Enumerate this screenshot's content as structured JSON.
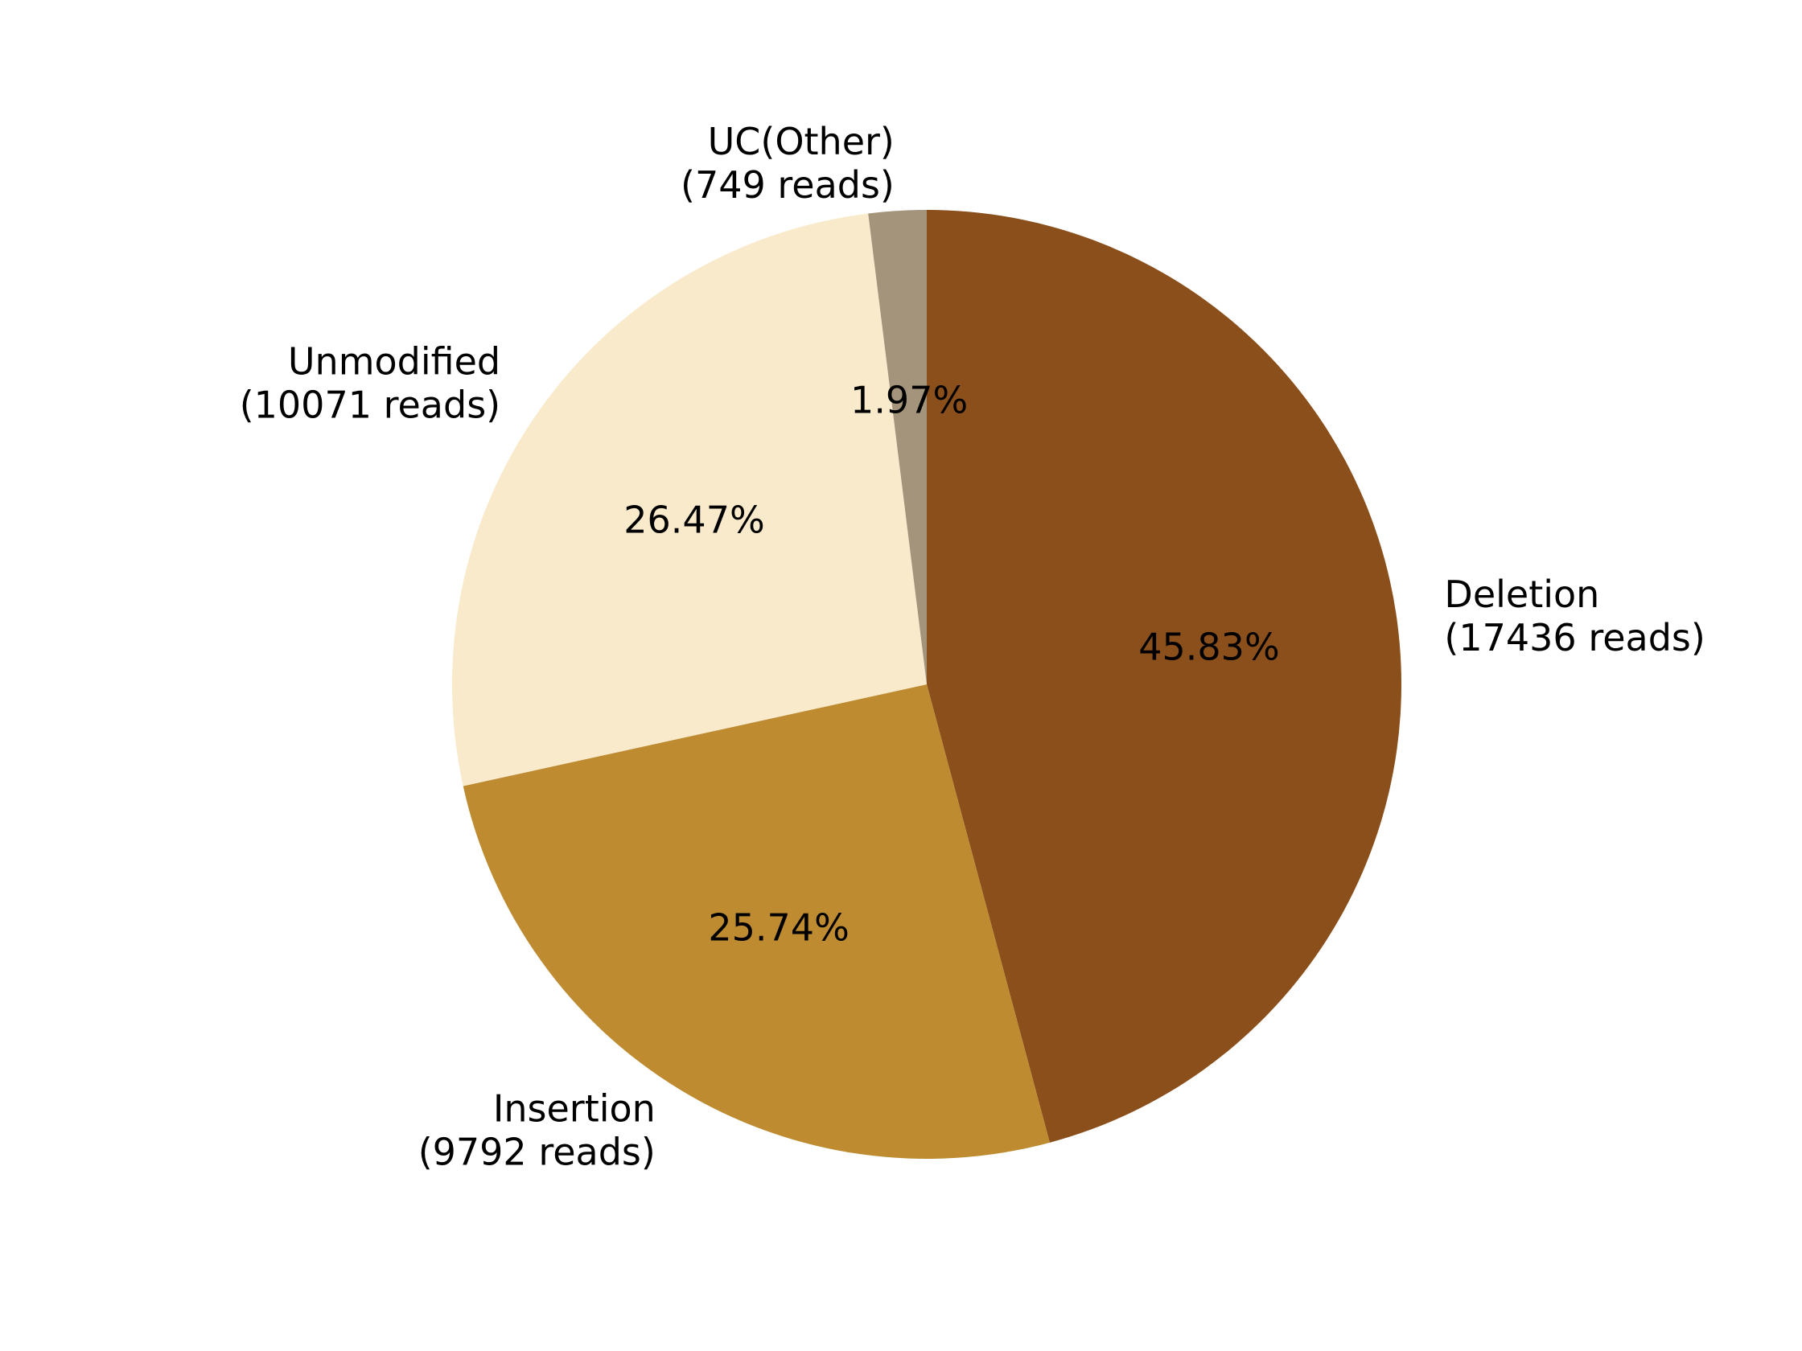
{
  "chart_data": {
    "type": "pie",
    "title": "",
    "start_angle": "top (12 o'clock)",
    "direction": "clockwise",
    "legend": "none",
    "slices": [
      {
        "name": "Deletion",
        "reads_label": "(17436 reads)",
        "reads": 17436,
        "percent": 45.83,
        "percent_label": "45.83%",
        "color": "#8B4F1B"
      },
      {
        "name": "Insertion",
        "reads_label": "(9792 reads)",
        "reads": 9792,
        "percent": 25.74,
        "percent_label": "25.74%",
        "color": "#BE8B31"
      },
      {
        "name": "Unmodified",
        "reads_label": "(10071 reads)",
        "reads": 10071,
        "percent": 26.47,
        "percent_label": "26.47%",
        "color": "#F8EACB"
      },
      {
        "name": "UC(Other)",
        "reads_label": "(749 reads)",
        "reads": 749,
        "percent": 1.97,
        "percent_label": "1.97%",
        "color": "#A5947C"
      }
    ]
  }
}
